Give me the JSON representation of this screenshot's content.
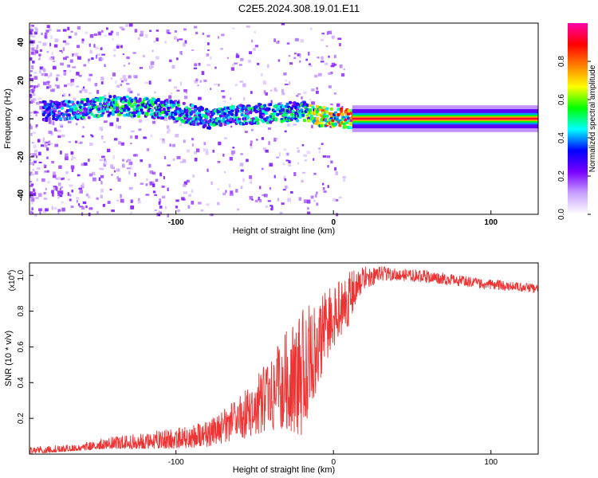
{
  "title": "C2E5.2024.308.19.01.E11",
  "colors": {
    "snr_line": "#ee3333",
    "spectrogram_background": "#ffffff"
  },
  "chart_data": [
    {
      "type": "heatmap",
      "name": "spectrogram",
      "xlabel": "Height of straight line (km)",
      "ylabel": "Frequency (Hz)",
      "xlim": [
        -193,
        130
      ],
      "ylim": [
        -50,
        50
      ],
      "xticks": [
        -100,
        0,
        100
      ],
      "xtick_labels": [
        "-100",
        "0",
        "100"
      ],
      "yticks": [
        -40,
        -20,
        0,
        20,
        40
      ],
      "ytick_labels": [
        "-40",
        "-20",
        "0",
        "20",
        "40"
      ],
      "description_of_signal": [
        {
          "x": -180,
          "y": 4,
          "amp": 0.35
        },
        {
          "x": -160,
          "y": 5,
          "amp": 0.45
        },
        {
          "x": -140,
          "y": 7,
          "amp": 0.5
        },
        {
          "x": -120,
          "y": 6,
          "amp": 0.5
        },
        {
          "x": -100,
          "y": 4,
          "amp": 0.45
        },
        {
          "x": -80,
          "y": 0,
          "amp": 0.45
        },
        {
          "x": -60,
          "y": 2,
          "amp": 0.45
        },
        {
          "x": -40,
          "y": 3,
          "amp": 0.45
        },
        {
          "x": -20,
          "y": 4,
          "amp": 0.5
        },
        {
          "x": -10,
          "y": 1,
          "amp": 0.75
        },
        {
          "x": 0,
          "y": 1,
          "amp": 0.8
        },
        {
          "x": 10,
          "y": 0,
          "amp": 0.9
        },
        {
          "x": 50,
          "y": 0,
          "amp": 0.95
        },
        {
          "x": 100,
          "y": 0,
          "amp": 0.9
        },
        {
          "x": 130,
          "y": 0,
          "amp": 0.85
        }
      ],
      "colorbar": {
        "label": "Normalized spectral amplitude",
        "range": [
          0,
          1
        ],
        "ticks": [
          "0.0",
          "0.2",
          "0.4",
          "0.6",
          "0.8"
        ],
        "colormap": [
          "#ffffff",
          "#c8a0ff",
          "#7a00ff",
          "#0000ff",
          "#00ffff",
          "#00ff00",
          "#ffff00",
          "#ff8000",
          "#ff0000",
          "#ff00aa"
        ]
      }
    },
    {
      "type": "line",
      "name": "snr",
      "xlabel": "Height of straight line (km)",
      "ylabel": "SNR (10 * v/v)",
      "scale_label_prefix": "(x10",
      "scale_label_exponent": "4",
      "scale_label_suffix": ")",
      "xlim": [
        -193,
        130
      ],
      "ylim": [
        0,
        1.07
      ],
      "xticks": [
        -100,
        0,
        100
      ],
      "xtick_labels": [
        "-100",
        "0",
        "100"
      ],
      "yticks": [
        0.2,
        0.4,
        0.6,
        0.8,
        1.0
      ],
      "ytick_labels": [
        "0.2",
        "0.4",
        "0.6",
        "0.8",
        "1.0"
      ],
      "envelope": {
        "x": [
          -193,
          -160,
          -140,
          -120,
          -100,
          -80,
          -70,
          -60,
          -50,
          -40,
          -30,
          -20,
          -15,
          -10,
          -5,
          0,
          5,
          10,
          15,
          20,
          30,
          40,
          60,
          80,
          100,
          130
        ],
        "low": [
          0.0,
          0.02,
          0.03,
          0.03,
          0.03,
          0.04,
          0.06,
          0.08,
          0.1,
          0.12,
          0.14,
          0.1,
          0.25,
          0.35,
          0.5,
          0.55,
          0.62,
          0.72,
          0.85,
          0.92,
          0.97,
          0.97,
          0.96,
          0.94,
          0.92,
          0.9
        ],
        "high": [
          0.04,
          0.06,
          0.1,
          0.12,
          0.15,
          0.18,
          0.25,
          0.32,
          0.42,
          0.55,
          0.7,
          0.8,
          0.88,
          0.9,
          0.92,
          0.95,
          0.98,
          1.02,
          1.04,
          1.05,
          1.05,
          1.04,
          1.03,
          1.0,
          0.98,
          0.95
        ]
      }
    }
  ]
}
